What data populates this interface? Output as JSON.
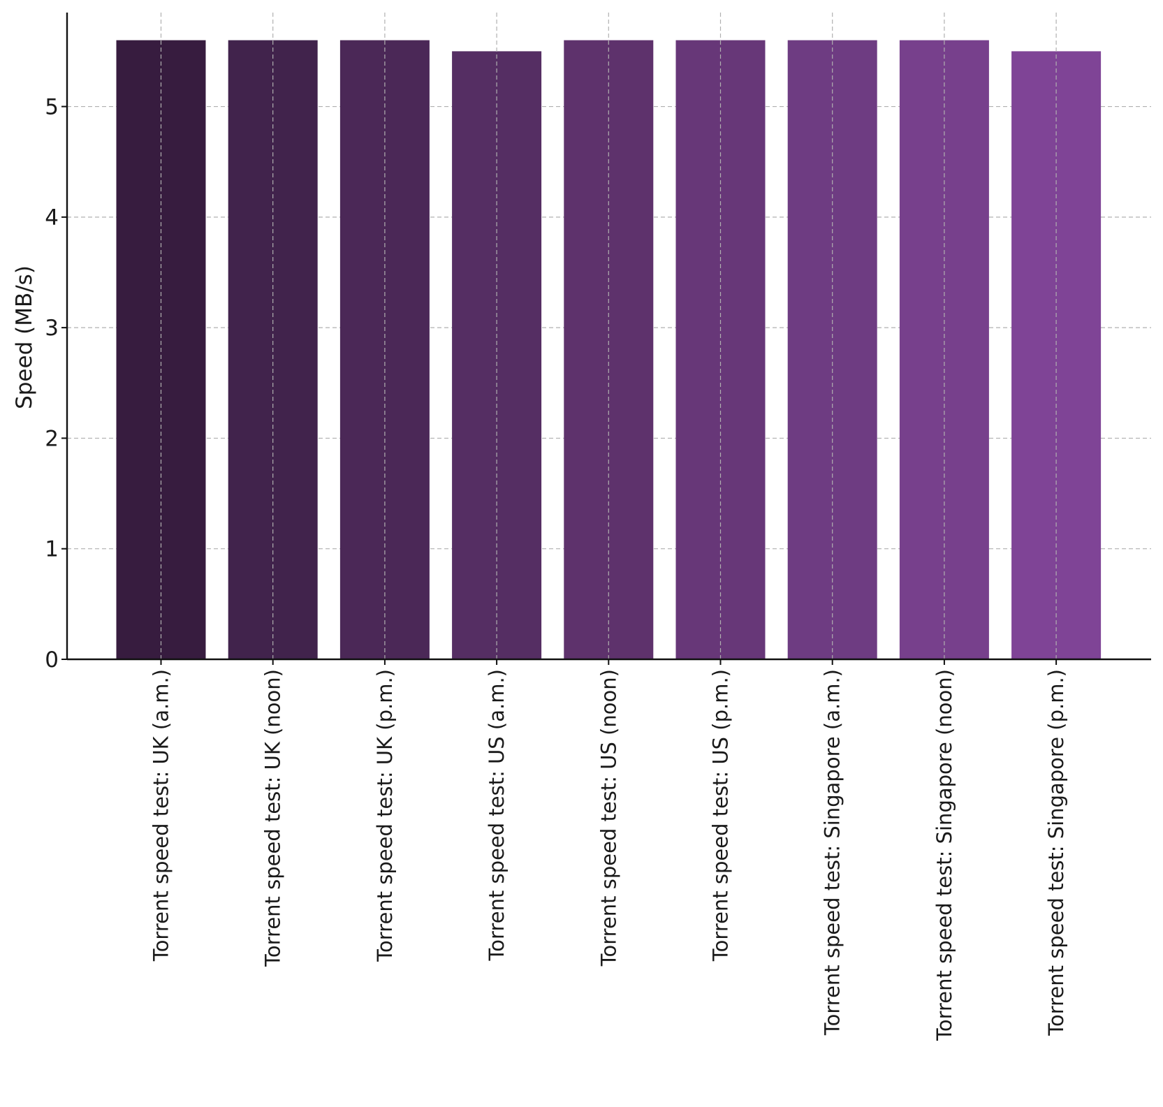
{
  "chart_data": {
    "type": "bar",
    "title": "",
    "xlabel": "",
    "ylabel": "Speed (MB/s)",
    "ylim": [
      0,
      5.85
    ],
    "yticks": [
      0,
      1,
      2,
      3,
      4,
      5
    ],
    "grid": true,
    "categories": [
      "Torrent speed test: UK (a.m.)",
      "Torrent speed test: UK (noon)",
      "Torrent speed test: UK (p.m.)",
      "Torrent speed test: US (a.m.)",
      "Torrent speed test: US (noon)",
      "Torrent speed test: US (p.m.)",
      "Torrent speed test: Singapore (a.m.)",
      "Torrent speed test: Singapore (noon)",
      "Torrent speed test: Singapore (p.m.)"
    ],
    "values": [
      5.6,
      5.6,
      5.6,
      5.5,
      5.6,
      5.6,
      5.6,
      5.6,
      5.5
    ],
    "colors": [
      "#371c3f",
      "#41234c",
      "#4b2857",
      "#552e63",
      "#5e326c",
      "#673778",
      "#6e3c82",
      "#77408c",
      "#7f4496"
    ]
  }
}
